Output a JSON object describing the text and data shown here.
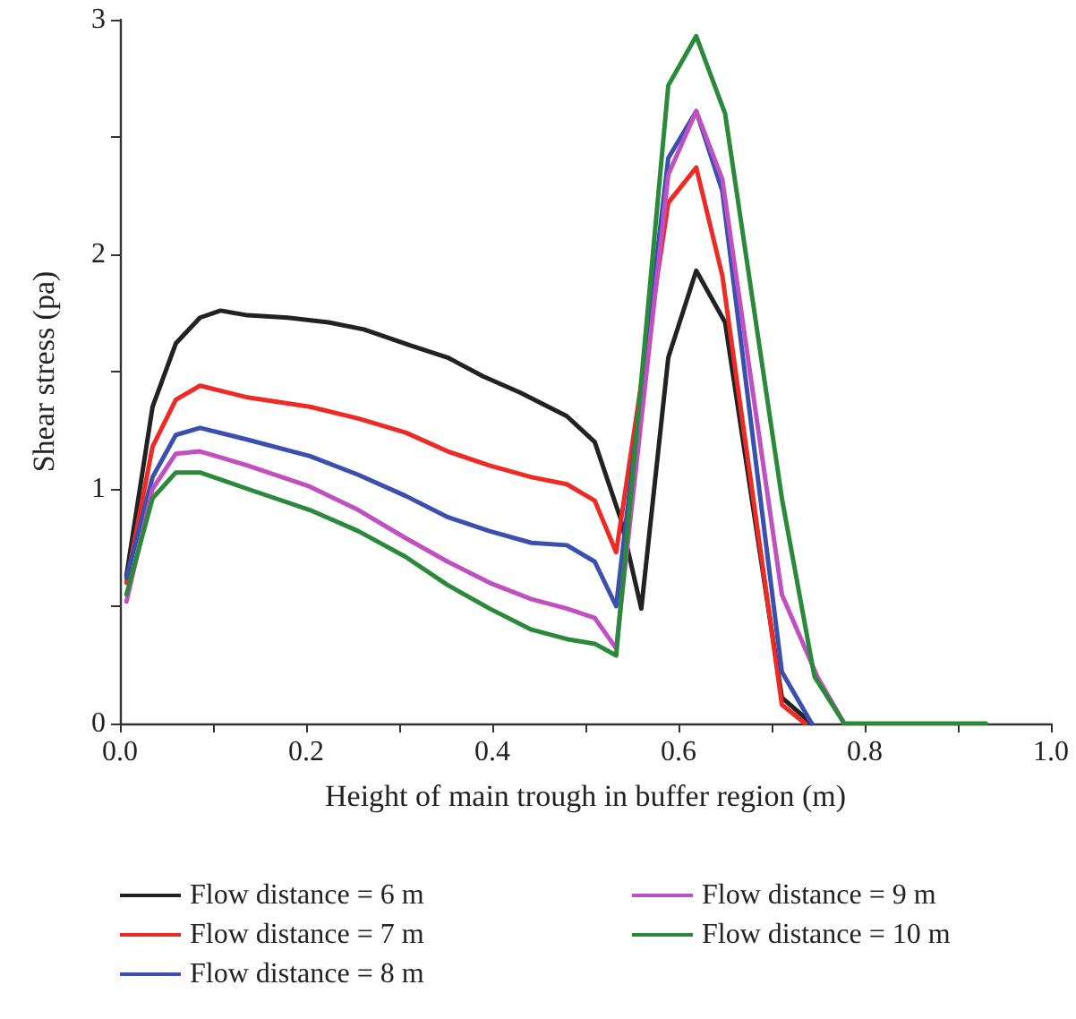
{
  "chart_data": {
    "type": "line",
    "xlabel": "Height of main trough in buffer region (m)",
    "ylabel": "Shear stress (pa)",
    "xlim": [
      0,
      1.0
    ],
    "ylim": [
      0,
      3
    ],
    "xticks": [
      {
        "value": 0,
        "label": "0.0"
      },
      {
        "value": 0.1,
        "label": null
      },
      0.2,
      {
        "value": 0.3,
        "label": null
      },
      0.4,
      {
        "value": 0.5,
        "label": null
      },
      0.6,
      {
        "value": 0.7,
        "label": null
      },
      0.8,
      {
        "value": 0.9,
        "label": null
      },
      {
        "value": 1.0,
        "label": "1.0"
      }
    ],
    "yticks": [
      0,
      {
        "value": 0.5,
        "label": null
      },
      1,
      {
        "value": 1.5,
        "label": null
      },
      2,
      {
        "value": 2.5,
        "label": null
      },
      3
    ],
    "grid": false,
    "legend": "bottom",
    "marker": "none",
    "line_style": "solid",
    "series": [
      {
        "name": "Flow distance = 6 m",
        "color": "#222222",
        "x": [
          0.007,
          0.035,
          0.06,
          0.086,
          0.108,
          0.137,
          0.18,
          0.224,
          0.262,
          0.313,
          0.352,
          0.39,
          0.43,
          0.48,
          0.51,
          0.538,
          0.56,
          0.589,
          0.619,
          0.65,
          0.711,
          0.743
        ],
        "values": [
          0.63,
          1.35,
          1.62,
          1.73,
          1.76,
          1.74,
          1.73,
          1.71,
          1.68,
          1.61,
          1.56,
          1.48,
          1.41,
          1.31,
          1.2,
          0.87,
          0.49,
          1.56,
          1.93,
          1.71,
          0.11,
          0
        ]
      },
      {
        "name": "Flow distance = 7 m",
        "color": "#ee2a24",
        "x": [
          0.007,
          0.035,
          0.06,
          0.086,
          0.137,
          0.204,
          0.256,
          0.307,
          0.352,
          0.397,
          0.442,
          0.48,
          0.51,
          0.533,
          0.589,
          0.619,
          0.647,
          0.711,
          0.736
        ],
        "values": [
          0.6,
          1.18,
          1.38,
          1.44,
          1.39,
          1.35,
          1.3,
          1.24,
          1.16,
          1.1,
          1.05,
          1.02,
          0.95,
          0.73,
          2.22,
          2.37,
          1.91,
          0.08,
          0
        ]
      },
      {
        "name": "Flow distance = 8 m",
        "color": "#3a4fb0",
        "x": [
          0.007,
          0.035,
          0.06,
          0.086,
          0.137,
          0.204,
          0.256,
          0.307,
          0.352,
          0.397,
          0.442,
          0.48,
          0.51,
          0.533,
          0.589,
          0.619,
          0.647,
          0.711,
          0.743
        ],
        "values": [
          0.62,
          1.05,
          1.23,
          1.26,
          1.21,
          1.14,
          1.06,
          0.97,
          0.88,
          0.82,
          0.77,
          0.76,
          0.69,
          0.5,
          2.41,
          2.61,
          2.27,
          0.22,
          0
        ]
      },
      {
        "name": "Flow distance = 9 m",
        "color": "#c04fc0",
        "x": [
          0.007,
          0.035,
          0.06,
          0.086,
          0.137,
          0.204,
          0.256,
          0.307,
          0.352,
          0.397,
          0.442,
          0.48,
          0.51,
          0.533,
          0.589,
          0.619,
          0.647,
          0.711,
          0.749,
          0.778
        ],
        "values": [
          0.52,
          1.0,
          1.15,
          1.16,
          1.1,
          1.01,
          0.91,
          0.79,
          0.69,
          0.6,
          0.53,
          0.49,
          0.45,
          0.32,
          2.34,
          2.61,
          2.32,
          0.55,
          0.2,
          0
        ]
      },
      {
        "name": "Flow distance = 10 m",
        "color": "#2a8a3a",
        "x": [
          0.007,
          0.035,
          0.06,
          0.086,
          0.137,
          0.204,
          0.256,
          0.307,
          0.352,
          0.397,
          0.442,
          0.48,
          0.51,
          0.533,
          0.589,
          0.619,
          0.65,
          0.711,
          0.746,
          0.778,
          0.93
        ],
        "values": [
          0.55,
          0.96,
          1.07,
          1.07,
          1.0,
          0.91,
          0.82,
          0.71,
          0.59,
          0.49,
          0.4,
          0.36,
          0.34,
          0.29,
          2.72,
          2.93,
          2.6,
          0.96,
          0.2,
          0,
          0
        ]
      }
    ]
  }
}
